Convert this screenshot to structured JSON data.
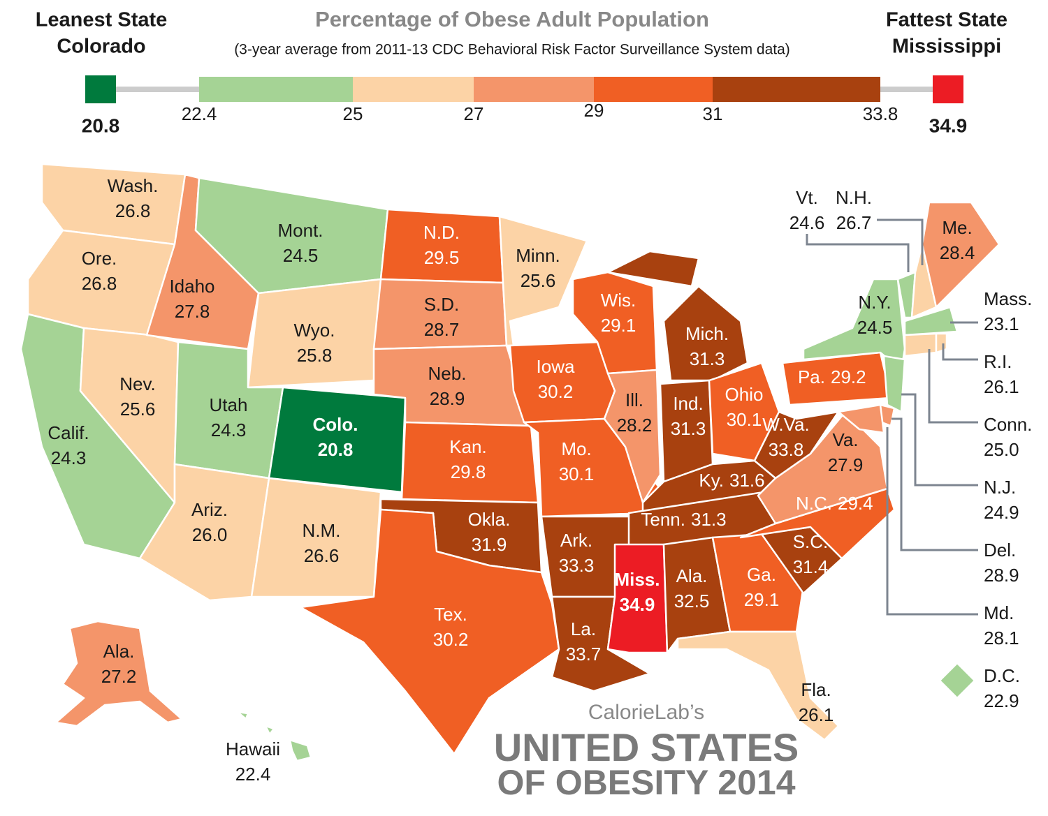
{
  "header": {
    "title": "Percentage of Obese Adult Population",
    "subtitle": "(3-year average from 2011-13 CDC Behavioral Risk Factor Surveillance System data)",
    "leanest": {
      "label": "Leanest State",
      "name": "Colorado",
      "value": "20.8",
      "color": "#007a3d"
    },
    "fattest": {
      "label": "Fattest State",
      "name": "Mississippi",
      "value": "34.9",
      "color": "#ec1c24"
    }
  },
  "legend": {
    "breaks": [
      "22.4",
      "25",
      "27",
      "29",
      "31",
      "33.8"
    ],
    "colors": [
      "#a5d395",
      "#fcd3a6",
      "#f4956a",
      "#f05f24",
      "#a8410f"
    ]
  },
  "states": [
    {
      "name": "Wash.",
      "value": "26.8"
    },
    {
      "name": "Ore.",
      "value": "26.8"
    },
    {
      "name": "Calif.",
      "value": "24.3"
    },
    {
      "name": "Nev.",
      "value": "25.6"
    },
    {
      "name": "Idaho",
      "value": "27.8"
    },
    {
      "name": "Mont.",
      "value": "24.5"
    },
    {
      "name": "Wyo.",
      "value": "25.8"
    },
    {
      "name": "Utah",
      "value": "24.3"
    },
    {
      "name": "Colo.",
      "value": "20.8"
    },
    {
      "name": "Ariz.",
      "value": "26.0"
    },
    {
      "name": "N.M.",
      "value": "26.6"
    },
    {
      "name": "N.D.",
      "value": "29.5"
    },
    {
      "name": "S.D.",
      "value": "28.7"
    },
    {
      "name": "Neb.",
      "value": "28.9"
    },
    {
      "name": "Kan.",
      "value": "29.8"
    },
    {
      "name": "Okla.",
      "value": "31.9"
    },
    {
      "name": "Tex.",
      "value": "30.2"
    },
    {
      "name": "Minn.",
      "value": "25.6"
    },
    {
      "name": "Iowa",
      "value": "30.2"
    },
    {
      "name": "Mo.",
      "value": "30.1"
    },
    {
      "name": "Ark.",
      "value": "33.3"
    },
    {
      "name": "La.",
      "value": "33.7"
    },
    {
      "name": "Wis.",
      "value": "29.1"
    },
    {
      "name": "Ill.",
      "value": "28.2"
    },
    {
      "name": "Mich.",
      "value": "31.3"
    },
    {
      "name": "Ind.",
      "value": "31.3"
    },
    {
      "name": "Ohio",
      "value": "30.1"
    },
    {
      "name": "Ky.",
      "value": "31.6"
    },
    {
      "name": "Tenn.",
      "value": "31.3"
    },
    {
      "name": "Miss.",
      "value": "34.9"
    },
    {
      "name": "Ala.",
      "value": "32.5"
    },
    {
      "name": "Ga.",
      "value": "29.1"
    },
    {
      "name": "Fla.",
      "value": "26.1"
    },
    {
      "name": "S.C.",
      "value": "31.4"
    },
    {
      "name": "N.C.",
      "value": "29.4"
    },
    {
      "name": "Va.",
      "value": "27.9"
    },
    {
      "name": "W.Va.",
      "value": "33.8"
    },
    {
      "name": "Pa.",
      "value": "29.2"
    },
    {
      "name": "N.Y.",
      "value": "24.5"
    },
    {
      "name": "Vt.",
      "value": "24.6"
    },
    {
      "name": "N.H.",
      "value": "26.7"
    },
    {
      "name": "Me.",
      "value": "28.4"
    },
    {
      "name": "Mass.",
      "value": "23.1"
    },
    {
      "name": "R.I.",
      "value": "26.1"
    },
    {
      "name": "Conn.",
      "value": "25.0"
    },
    {
      "name": "N.J.",
      "value": "24.9"
    },
    {
      "name": "Del.",
      "value": "28.9"
    },
    {
      "name": "Md.",
      "value": "28.1"
    },
    {
      "name": "Ala.",
      "value": "27.2"
    },
    {
      "name": "Hawaii",
      "value": "22.4"
    },
    {
      "name": "D.C.",
      "value": "22.9"
    }
  ],
  "credit": {
    "brand": "CalorieLab’s",
    "line1": "UNITED STATES",
    "line2": "OF OBESITY 2014"
  }
}
